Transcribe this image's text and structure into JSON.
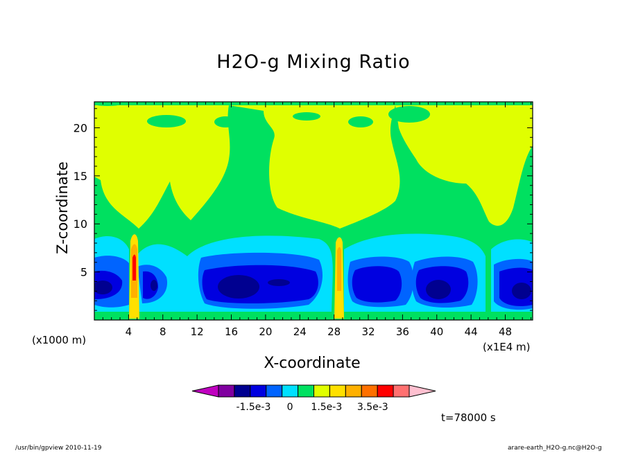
{
  "title": "H2O-g Mixing Ratio",
  "xlabel": "X-coordinate",
  "ylabel": "Z-coordinate",
  "x_unit_left": "(x1000 m)",
  "x_unit_right": "(x1E4 m)",
  "time_label": "t=78000 s",
  "footer_left": "/usr/bin/gpview   2010-11-19",
  "footer_right": "arare-earth_H2O-g.nc@H2O-g",
  "chart_data": {
    "type": "heatmap",
    "title": "H2O-g Mixing Ratio",
    "xlabel": "X-coordinate",
    "ylabel": "Z-coordinate",
    "xlim": [
      0,
      51.2
    ],
    "ylim": [
      0,
      22.7
    ],
    "x_ticks": [
      4,
      8,
      12,
      16,
      20,
      24,
      28,
      32,
      36,
      40,
      44,
      48
    ],
    "y_ticks": [
      5,
      10,
      15,
      20
    ],
    "colorbar": {
      "colors": [
        "#c000c0",
        "#8000a0",
        "#000090",
        "#0000e0",
        "#0064ff",
        "#00e0ff",
        "#00e060",
        "#e0ff00",
        "#ffe000",
        "#ffb000",
        "#ff7000",
        "#ff0000",
        "#ff7070",
        "#ffc0d0"
      ],
      "labels": [
        "-1.5e-3",
        "0",
        "1.5e-3",
        "3.5e-3"
      ]
    },
    "regions": [
      {
        "level": "dark-blue",
        "cx": 16.5,
        "cy": 3.6,
        "rx": 2.0,
        "ry": 1.2
      },
      {
        "level": "dark-blue",
        "cx": 20.8,
        "cy": 3.8,
        "rx": 1.0,
        "ry": 0.4
      },
      {
        "level": "dark-blue",
        "cx": 35.1,
        "cy": 3.3,
        "rx": 1.2,
        "ry": 1.4
      },
      {
        "level": "dark-blue",
        "cx": 40.2,
        "cy": 3.3,
        "rx": 1.6,
        "ry": 1.2
      },
      {
        "level": "dark-blue",
        "cx": 50.0,
        "cy": 2.8,
        "rx": 1.2,
        "ry": 1.2
      },
      {
        "level": "dark-blue",
        "cx": 0.8,
        "cy": 3.5,
        "rx": 1.2,
        "ry": 1.3
      },
      {
        "level": "dark-blue",
        "cx": 6.9,
        "cy": 3.5,
        "rx": 0.6,
        "ry": 1.3
      }
    ]
  }
}
